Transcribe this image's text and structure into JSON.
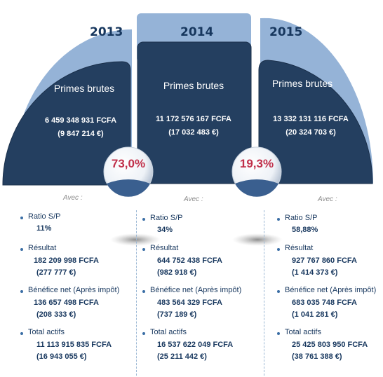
{
  "panels": [
    {
      "year": "2013",
      "title": "Primes brutes",
      "amount": "6 459 348 931 FCFA",
      "eur": "(9 847 214 €)"
    },
    {
      "year": "2014",
      "title": "Primes brutes",
      "amount": "11 172 576 167 FCFA",
      "eur": "(17 032 483 €)"
    },
    {
      "year": "2015",
      "title": "Primes brutes",
      "amount": "13 332 131 116 FCFA",
      "eur": "(20 324 703 €)"
    }
  ],
  "growth": [
    {
      "value": "73,0%"
    },
    {
      "value": "19,3%"
    }
  ],
  "columns": [
    {
      "avec": "Avec :",
      "ratio_label": "Ratio S/P",
      "ratio_value": "11%",
      "resultat_label": "Résultat",
      "resultat_fcfa": "182 209 998 FCFA",
      "resultat_eur": "(277 777 €)",
      "benefice_label": "Bénéfice net (Après impôt)",
      "benefice_fcfa": "136 657 498 FCFA",
      "benefice_eur": "(208 333 €)",
      "actifs_label": "Total actifs",
      "actifs_fcfa": "11 113 915 835 FCFA",
      "actifs_eur": "(16 943 055 €)"
    },
    {
      "avec": "Avec :",
      "ratio_label": "Ratio S/P",
      "ratio_value": "34%",
      "resultat_label": "Résultat",
      "resultat_fcfa": "644 752 438 FCFA",
      "resultat_eur": "(982 918 €)",
      "benefice_label": "Bénéfice net (Après impôt)",
      "benefice_fcfa": "483 564 329 FCFA",
      "benefice_eur": "(737 189 €)",
      "actifs_label": "Total actifs",
      "actifs_fcfa": "16 537 622 049 FCFA",
      "actifs_eur": "(25 211 442 €)"
    },
    {
      "avec": "Avec :",
      "ratio_label": "Ratio S/P",
      "ratio_value": "58,88%",
      "resultat_label": "Résultat",
      "resultat_fcfa": "927 767 860 FCFA",
      "resultat_eur": "(1 414 373 €)",
      "benefice_label": "Bénéfice net (Après impôt)",
      "benefice_fcfa": "683 035 748 FCFA",
      "benefice_eur": "(1 041 281 €)",
      "actifs_label": "Total actifs",
      "actifs_fcfa": "25 425 803 950 FCFA",
      "actifs_eur": "(38 761 388 €)"
    }
  ],
  "colors": {
    "dark": "#243f60",
    "light": "#95b3d7",
    "text": "#17375e",
    "accent": "#c0304a"
  }
}
